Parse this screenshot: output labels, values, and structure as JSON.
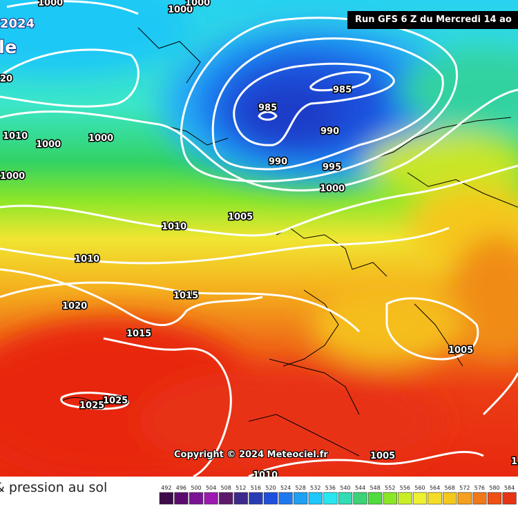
{
  "header": {
    "run_banner": "Run GFS 6 Z du Mercredi 14 ao",
    "corner_year": "2024",
    "corner_fragment": "le"
  },
  "map": {
    "isobar_labels": [
      "1000",
      "1000",
      "1000",
      "20",
      "1010",
      "1000",
      "1000",
      "1000",
      "985",
      "985",
      "990",
      "990",
      "995",
      "1000",
      "1005",
      "1010",
      "1010",
      "1015",
      "1020",
      "1015",
      "1025",
      "1025",
      "1005",
      "1005",
      "1010",
      "1"
    ],
    "copyright": "Copyright © 2024 Meteociel.fr"
  },
  "legend": {
    "title": "& pression au sol",
    "levels": [
      "492",
      "496",
      "500",
      "504",
      "508",
      "512",
      "516",
      "520",
      "524",
      "528",
      "532",
      "536",
      "540",
      "544",
      "548",
      "552",
      "556",
      "560",
      "564",
      "568",
      "572",
      "576",
      "580",
      "584"
    ],
    "colors": [
      "#3d0a4a",
      "#5c0a6e",
      "#7a1494",
      "#9c1ab0",
      "#5e1a6a",
      "#3d2a8a",
      "#2a3cb4",
      "#1e50dc",
      "#1e78f0",
      "#1ea0f5",
      "#1ec8fa",
      "#28e6f0",
      "#32dcb4",
      "#3cd278",
      "#50dc3c",
      "#8ce628",
      "#c8ee28",
      "#f0f032",
      "#f5dc28",
      "#f5c81e",
      "#f5a01e",
      "#f07818",
      "#f05014",
      "#e83214"
    ]
  }
}
